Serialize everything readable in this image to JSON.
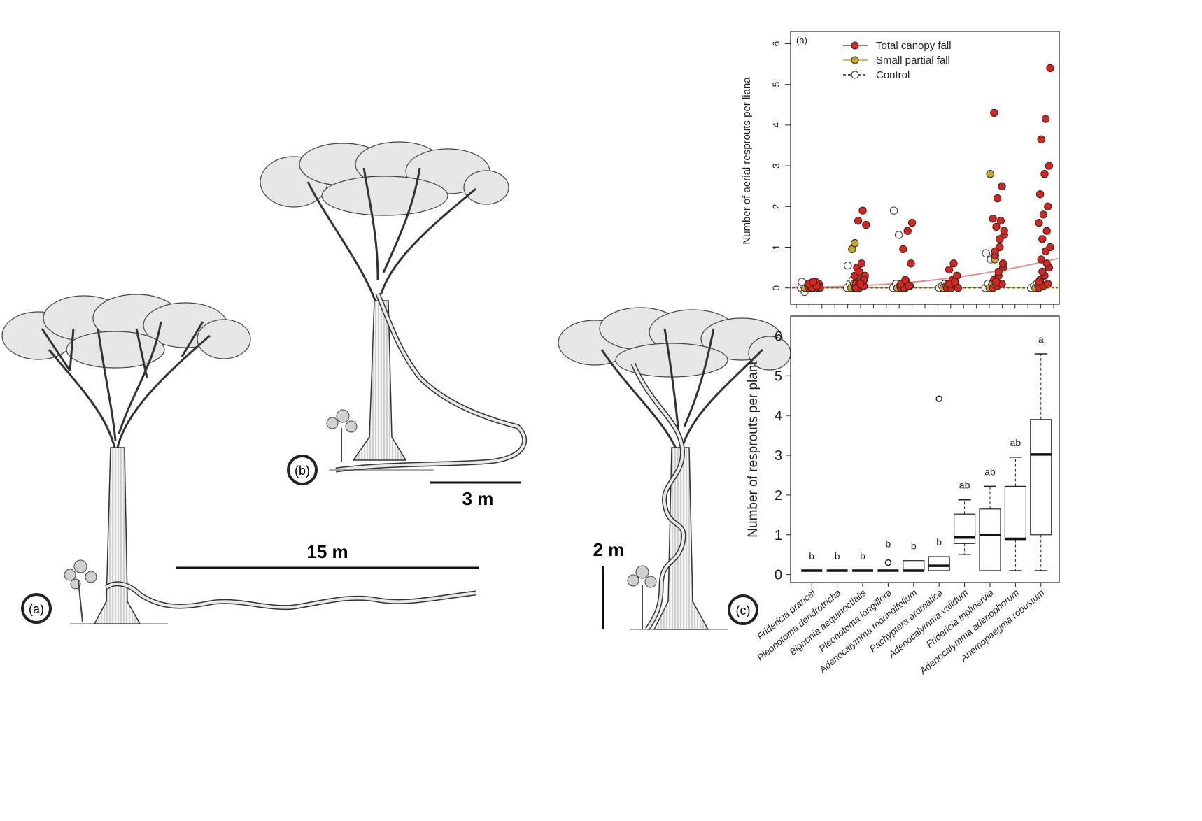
{
  "illustration": {
    "panels": [
      {
        "label": "(a)",
        "scale_label": "15 m"
      },
      {
        "label": "(b)",
        "scale_label": "3 m"
      },
      {
        "label": "(c)",
        "scale_label": "2 m"
      }
    ]
  },
  "chart_data": [
    {
      "type": "scatter",
      "panel_label": "(a)",
      "ylabel": "Number of aerial resprouts per liana",
      "ylim": [
        -0.4,
        6.3
      ],
      "yticks": [
        "0",
        "1",
        "2",
        "3",
        "4",
        "5",
        "6"
      ],
      "legend": {
        "position": "top-left",
        "entries": [
          {
            "name": "Total canopy fall",
            "color": "#d7261e",
            "line": "solid"
          },
          {
            "name": "Small partial fall",
            "color": "#c8a42a",
            "line": "solid"
          },
          {
            "name": "Control",
            "color": "#ffffff",
            "line": "dashed"
          }
        ]
      },
      "groups": 6,
      "series": [
        {
          "name": "Total canopy fall",
          "color": "#d7261e",
          "groups": [
            [
              0,
              0,
              0,
              0.05,
              0.08,
              0.1,
              0.12,
              0.15,
              0,
              0,
              0.05,
              0.1,
              0.15
            ],
            [
              0,
              0,
              0.05,
              0.1,
              0.2,
              0.3,
              0.5,
              0.6,
              1.55,
              1.65,
              1.9,
              0.3,
              0.4,
              0.2,
              0,
              0.1
            ],
            [
              0,
              0,
              0.05,
              0.1,
              0.15,
              0.6,
              0.95,
              1.4,
              1.6,
              0,
              0.05,
              0.1,
              0.2
            ],
            [
              0,
              0,
              0.05,
              0.1,
              0.2,
              0.3,
              0.45,
              0.6,
              0,
              0.1,
              0.15
            ],
            [
              0,
              0.05,
              0.1,
              0.2,
              0.3,
              0.5,
              0.8,
              1.0,
              1.3,
              1.5,
              1.65,
              1.7,
              2.2,
              2.5,
              4.3,
              0.4,
              0.6,
              0.9,
              1.2,
              1.4,
              0.15
            ],
            [
              0,
              0.05,
              0.1,
              0.2,
              0.3,
              0.5,
              0.7,
              0.9,
              1.0,
              1.2,
              1.4,
              1.6,
              1.8,
              2.0,
              2.3,
              2.8,
              3.0,
              3.65,
              4.15,
              5.4,
              0.4,
              0.6,
              0.15
            ]
          ]
        },
        {
          "name": "Small partial fall",
          "color": "#c8a42a",
          "groups": [
            [
              0,
              0.05,
              0.1
            ],
            [
              0,
              0.1,
              0.2,
              0.95,
              1.1
            ],
            [
              0,
              0.05,
              0.1
            ],
            [
              0,
              0.05,
              0.1
            ],
            [
              0,
              0.1,
              0.7,
              2.8
            ],
            [
              0,
              0.05,
              0.1
            ]
          ]
        },
        {
          "name": "Control",
          "color": "#ffffff",
          "groups": [
            [
              0,
              0.05,
              0.1,
              0.15,
              -0.1
            ],
            [
              0,
              0.1,
              0.2,
              0.55
            ],
            [
              0,
              0.1,
              1.3,
              1.9
            ],
            [
              0,
              0.05,
              0.1
            ],
            [
              0,
              0.1,
              0.7,
              0.85
            ],
            [
              0,
              0.05,
              0.1
            ]
          ]
        }
      ],
      "trend_lines": [
        {
          "name": "Total canopy fall",
          "color": "#e58888",
          "y_start": 0.02,
          "y_end": 0.72
        },
        {
          "name": "Small partial fall",
          "color": "#c8a42a",
          "y_start": 0.0,
          "y_end": 0.02
        },
        {
          "name": "Control",
          "color": "#555555",
          "y_start": 0.0,
          "y_end": 0.0
        }
      ]
    },
    {
      "type": "box",
      "ylabel": "Number of resprouts per plant",
      "ylim": [
        -0.2,
        6.5
      ],
      "yticks": [
        "0",
        "1",
        "2",
        "3",
        "4",
        "5",
        "6"
      ],
      "categories": [
        "Fridericia prancei",
        "Pleonotoma dendrotricha",
        "Bignonia aequinoctialis",
        "Pleonotoma longiflora",
        "Adenocalymma moringifolium",
        "Pachyptera aromatica",
        "Adenocalymma validum",
        "Fridericia triplinervia",
        "Adenocalymma adenophorum",
        "Anemopaegma robustum"
      ],
      "boxes": [
        {
          "min": 0.1,
          "q1": 0.1,
          "median": 0.1,
          "q3": 0.1,
          "max": 0.1,
          "outliers": []
        },
        {
          "min": 0.1,
          "q1": 0.1,
          "median": 0.1,
          "q3": 0.1,
          "max": 0.1,
          "outliers": []
        },
        {
          "min": 0.1,
          "q1": 0.1,
          "median": 0.1,
          "q3": 0.1,
          "max": 0.1,
          "outliers": []
        },
        {
          "min": 0.1,
          "q1": 0.1,
          "median": 0.1,
          "q3": 0.1,
          "max": 0.1,
          "outliers": [
            0.3
          ]
        },
        {
          "min": 0.1,
          "q1": 0.1,
          "median": 0.1,
          "q3": 0.35,
          "max": 0.35,
          "outliers": []
        },
        {
          "min": 0.1,
          "q1": 0.1,
          "median": 0.22,
          "q3": 0.45,
          "max": 0.45,
          "outliers": [
            4.42
          ]
        },
        {
          "min": 0.5,
          "q1": 0.78,
          "median": 0.93,
          "q3": 1.52,
          "max": 1.88,
          "outliers": []
        },
        {
          "min": 0.1,
          "q1": 0.1,
          "median": 1.0,
          "q3": 1.65,
          "max": 2.22,
          "outliers": []
        },
        {
          "min": 0.1,
          "q1": 0.88,
          "median": 0.9,
          "q3": 2.22,
          "max": 2.95,
          "outliers": []
        },
        {
          "min": 0.1,
          "q1": 1.0,
          "median": 3.02,
          "q3": 3.9,
          "max": 5.55,
          "outliers": []
        }
      ],
      "group_letters": [
        "b",
        "b",
        "b",
        "b",
        "b",
        "b",
        "ab",
        "ab",
        "ab",
        "a"
      ]
    }
  ]
}
